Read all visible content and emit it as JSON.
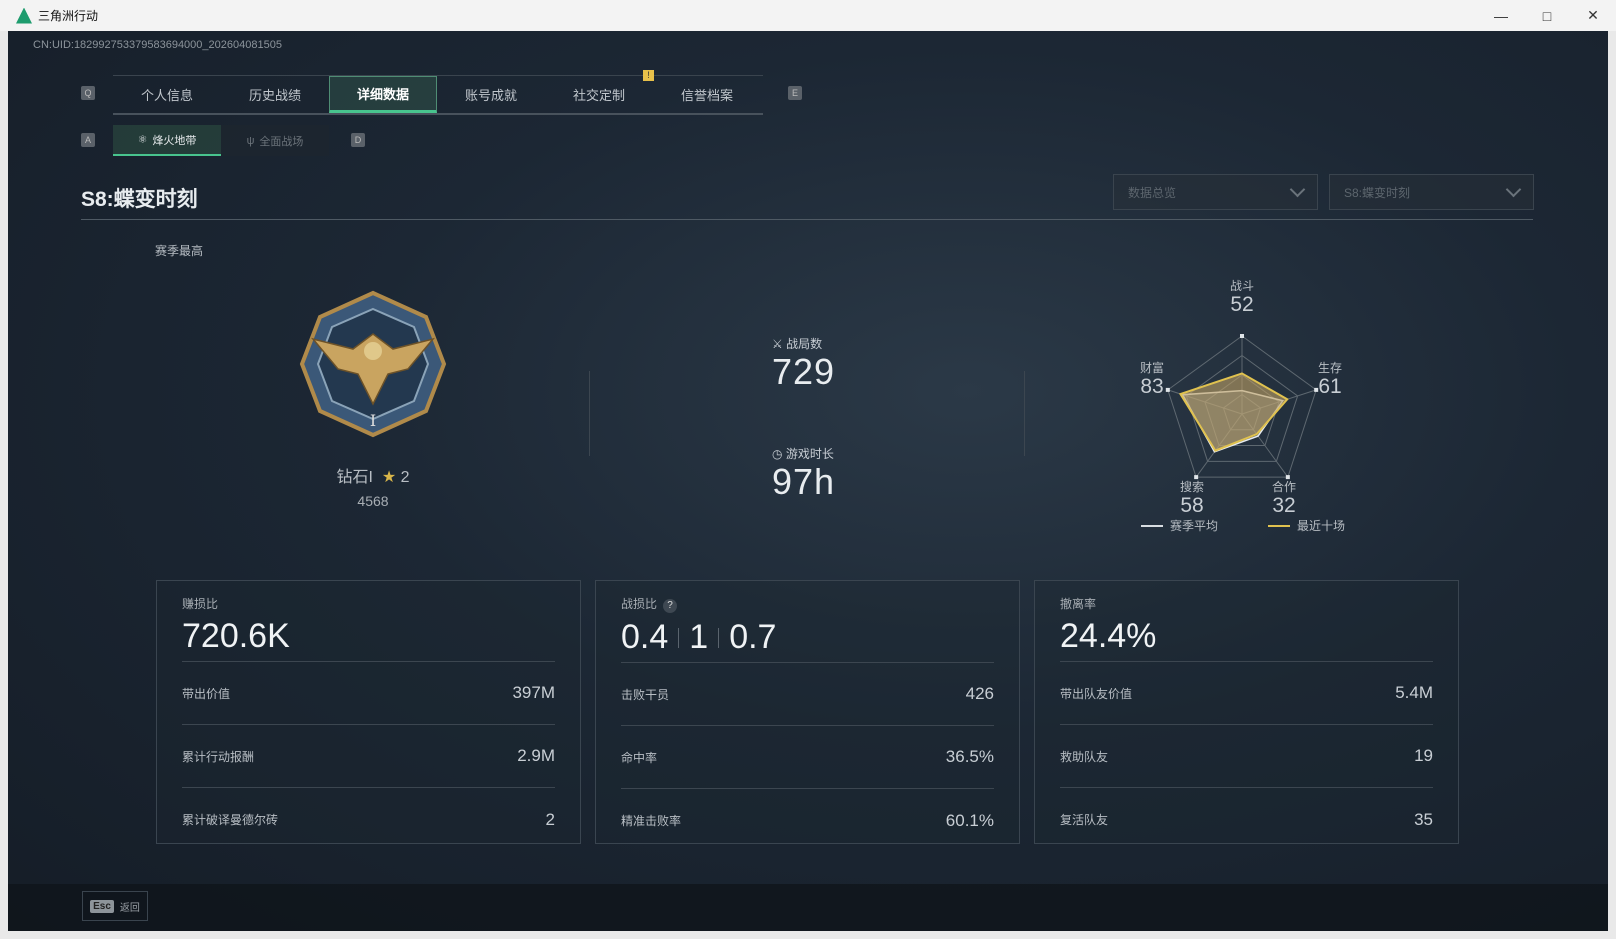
{
  "window": {
    "title": "三角洲行动",
    "controls": [
      "minimize",
      "maximize",
      "close"
    ]
  },
  "uid": "CN:UID:182992753379583694000_202604081505",
  "tabs": {
    "left_key": "Q",
    "right_key": "E",
    "items": [
      {
        "label": "个人信息"
      },
      {
        "label": "历史战绩"
      },
      {
        "label": "详细数据",
        "active": true
      },
      {
        "label": "账号成就"
      },
      {
        "label": "社交定制",
        "alert": "!"
      },
      {
        "label": "信誉档案"
      }
    ]
  },
  "subtabs": {
    "left_key": "A",
    "right_key": "D",
    "items": [
      {
        "label": "烽火地带",
        "active": true
      },
      {
        "label": "全面战场"
      }
    ]
  },
  "season_title": "S8:蝶变时刻",
  "dropdowns": {
    "view": "数据总览",
    "season": "S8:蝶变时刻"
  },
  "rank": {
    "label": "赛季最高",
    "name": "钻石I",
    "stars": "2",
    "score": "4568"
  },
  "matches": {
    "label": "战局数",
    "value": "729"
  },
  "playtime": {
    "label": "游戏时长",
    "value": "97h"
  },
  "accent": {
    "recent": "#e0c24f",
    "average": "#ffffff",
    "active_tab": "#48c48e"
  },
  "chart_data": {
    "type": "radar",
    "axes": [
      "战斗",
      "生存",
      "合作",
      "搜索",
      "财富"
    ],
    "values": [
      52,
      61,
      32,
      58,
      83
    ],
    "range": [
      0,
      100
    ],
    "series": [
      {
        "name": "赛季平均",
        "values": [
          30,
          55,
          35,
          60,
          80
        ]
      },
      {
        "name": "最近十场",
        "values": [
          52,
          61,
          32,
          58,
          83
        ]
      }
    ],
    "legend": "bottom"
  },
  "cards": [
    {
      "title": "赚损比",
      "headline": [
        "720.6K"
      ],
      "rows": [
        {
          "label": "带出价值",
          "value": "397M"
        },
        {
          "label": "累计行动报酬",
          "value": "2.9M"
        },
        {
          "label": "累计破译曼德尔砖",
          "value": "2"
        }
      ]
    },
    {
      "title": "战损比",
      "help": "?",
      "headline": [
        "0.4",
        "1",
        "0.7"
      ],
      "rows": [
        {
          "label": "击败干员",
          "value": "426"
        },
        {
          "label": "命中率",
          "value": "36.5%"
        },
        {
          "label": "精准击败率",
          "value": "60.1%"
        }
      ]
    },
    {
      "title": "撤离率",
      "headline": [
        "24.4%"
      ],
      "rows": [
        {
          "label": "带出队友价值",
          "value": "5.4M"
        },
        {
          "label": "救助队友",
          "value": "19"
        },
        {
          "label": "复活队友",
          "value": "35"
        }
      ]
    }
  ],
  "footer": {
    "key": "Esc",
    "label": "返回"
  }
}
